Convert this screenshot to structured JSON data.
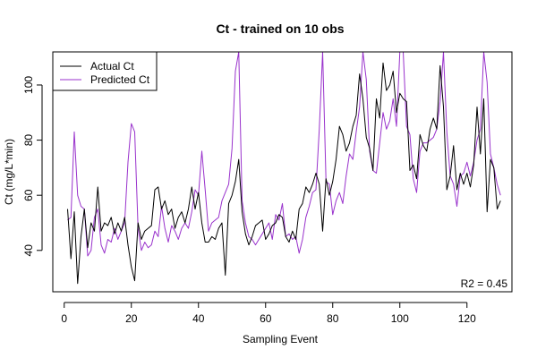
{
  "chart_data": {
    "type": "line",
    "title": "Ct - trained on 10 obs",
    "xlabel": "Sampling Event",
    "ylabel": "Ct (mg/L*min)",
    "xlim": [
      -3.4,
      133.4
    ],
    "ylim": [
      25,
      112
    ],
    "x_ticks": [
      0,
      20,
      40,
      60,
      80,
      100,
      120
    ],
    "y_ticks": [
      40,
      60,
      80,
      100
    ],
    "grid": false,
    "legend_position": "top-left",
    "annotation": "R2 = 0.45",
    "x": [
      1,
      2,
      3,
      4,
      5,
      6,
      7,
      8,
      9,
      10,
      11,
      12,
      13,
      14,
      15,
      16,
      17,
      18,
      19,
      20,
      21,
      22,
      23,
      24,
      25,
      26,
      27,
      28,
      29,
      30,
      31,
      32,
      33,
      34,
      35,
      36,
      37,
      38,
      39,
      40,
      41,
      42,
      43,
      44,
      45,
      46,
      47,
      48,
      49,
      50,
      51,
      52,
      53,
      54,
      55,
      56,
      57,
      58,
      59,
      60,
      61,
      62,
      63,
      64,
      65,
      66,
      67,
      68,
      69,
      70,
      71,
      72,
      73,
      74,
      75,
      76,
      77,
      78,
      79,
      80,
      81,
      82,
      83,
      84,
      85,
      86,
      87,
      88,
      89,
      90,
      91,
      92,
      93,
      94,
      95,
      96,
      97,
      98,
      99,
      100,
      101,
      102,
      103,
      104,
      105,
      106,
      107,
      108,
      109,
      110,
      111,
      112,
      113,
      114,
      115,
      116,
      117,
      118,
      119,
      120,
      121,
      122,
      123,
      124,
      125,
      126,
      127,
      128,
      129,
      130
    ],
    "series": [
      {
        "name": "Actual Ct",
        "color": "#000000",
        "values": [
          55,
          37,
          54,
          28,
          45,
          55,
          41,
          50,
          47,
          63,
          47,
          50,
          49,
          52,
          46,
          50,
          47,
          52,
          42,
          34,
          29,
          50,
          44,
          47,
          48,
          49,
          62,
          63,
          55,
          58,
          53,
          55,
          48,
          52,
          54,
          50,
          55,
          63,
          55,
          61,
          50,
          43,
          43,
          45,
          44,
          48,
          50,
          31,
          57,
          60,
          65,
          73,
          54,
          46,
          42,
          45,
          49,
          50,
          51,
          44,
          46,
          49,
          50,
          53,
          52,
          45,
          43,
          47,
          44,
          55,
          57,
          63,
          61,
          64,
          68,
          64,
          47,
          66,
          60,
          65,
          73,
          85,
          82,
          76,
          79,
          85,
          89,
          104,
          95,
          81,
          77,
          69,
          95,
          88,
          108,
          98,
          100,
          105,
          90,
          97,
          95,
          94,
          69,
          71,
          66,
          82,
          78,
          76,
          84,
          88,
          84,
          107,
          92,
          62,
          67,
          78,
          62,
          68,
          64,
          68,
          63,
          71,
          92,
          75,
          95,
          54,
          73,
          70,
          55,
          58
        ]
      },
      {
        "name": "Predicted Ct",
        "color": "#9932CC",
        "values": [
          51,
          52,
          83,
          60,
          56,
          55,
          38,
          40,
          52,
          55,
          42,
          39,
          44,
          43,
          48,
          44,
          47,
          50,
          72,
          86,
          83,
          48,
          40,
          43,
          41,
          42,
          47,
          45,
          56,
          48,
          43,
          49,
          47,
          44,
          48,
          50,
          48,
          54,
          62,
          60,
          76,
          62,
          47,
          50,
          51,
          52,
          58,
          61,
          64,
          77,
          105,
          112,
          58,
          50,
          45,
          44,
          42,
          44,
          46,
          48,
          50,
          44,
          53,
          51,
          57,
          45,
          46,
          44,
          45,
          39,
          44,
          52,
          56,
          61,
          62,
          84,
          112,
          65,
          64,
          53,
          58,
          61,
          57,
          67,
          75,
          73,
          83,
          92,
          112,
          102,
          76,
          69,
          68,
          79,
          90,
          84,
          87,
          95,
          85,
          112,
          112,
          85,
          82,
          66,
          61,
          76,
          79,
          79,
          80,
          81,
          84,
          94,
          112,
          83,
          67,
          64,
          56,
          67,
          68,
          72,
          67,
          72,
          80,
          84,
          112,
          101,
          75,
          70,
          64,
          60
        ]
      }
    ]
  }
}
